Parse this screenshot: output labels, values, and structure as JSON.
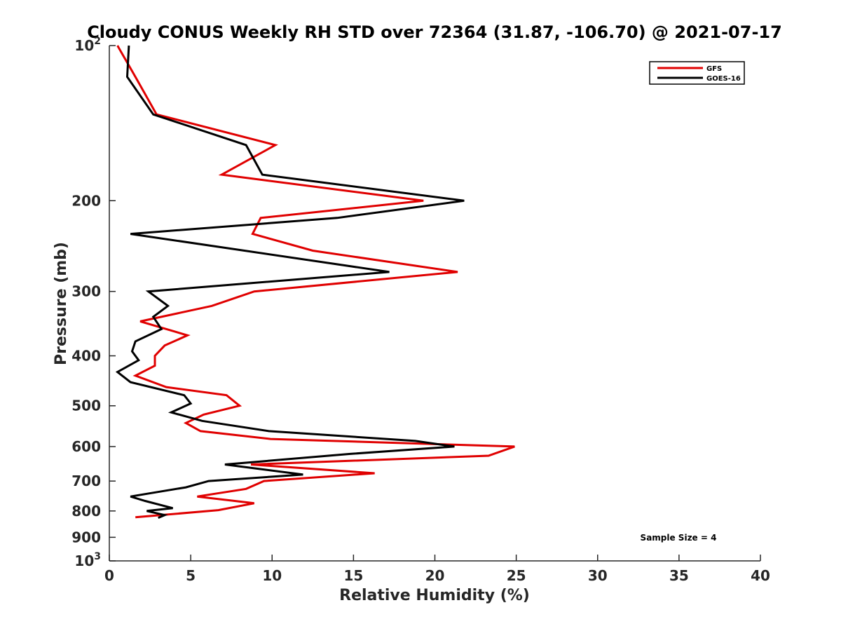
{
  "chart_data": {
    "type": "line",
    "title": "Cloudy CONUS Weekly RH STD over 72364 (31.87, -106.70) @ 2021-07-17",
    "xlabel": "Relative Humidity (%)",
    "ylabel": "Pressure (mb)",
    "xlim": [
      0,
      40
    ],
    "ylim": [
      100,
      1000
    ],
    "y_scale": "log",
    "y_reversed": true,
    "xticks": [
      "0",
      "5",
      "10",
      "15",
      "20",
      "25",
      "30",
      "35",
      "40"
    ],
    "yticks": [
      {
        "value": 100,
        "base": "10",
        "exp": "2"
      },
      {
        "value": 200,
        "label": "200"
      },
      {
        "value": 300,
        "label": "300"
      },
      {
        "value": 400,
        "label": "400"
      },
      {
        "value": 500,
        "label": "500"
      },
      {
        "value": 600,
        "label": "600"
      },
      {
        "value": 700,
        "label": "700"
      },
      {
        "value": 800,
        "label": "800"
      },
      {
        "value": 900,
        "label": "900"
      },
      {
        "value": 1000,
        "base": "10",
        "exp": "3"
      }
    ],
    "legend_position": "top-right",
    "annotation": "Sample Size = 4",
    "series": [
      {
        "name": "GFS",
        "color": "#e00000",
        "points": [
          [
            0.5,
            100
          ],
          [
            1.6,
            115
          ],
          [
            2.9,
            136
          ],
          [
            10.2,
            156
          ],
          [
            6.9,
            178
          ],
          [
            19.3,
            200
          ],
          [
            9.3,
            216
          ],
          [
            8.8,
            232
          ],
          [
            12.5,
            250
          ],
          [
            21.4,
            275
          ],
          [
            8.9,
            300
          ],
          [
            6.3,
            320
          ],
          [
            1.9,
            343
          ],
          [
            4.8,
            365
          ],
          [
            3.4,
            382
          ],
          [
            2.8,
            400
          ],
          [
            2.8,
            418
          ],
          [
            1.6,
            437
          ],
          [
            3.5,
            460
          ],
          [
            7.2,
            477
          ],
          [
            8.0,
            500
          ],
          [
            5.8,
            520
          ],
          [
            4.7,
            540
          ],
          [
            5.6,
            560
          ],
          [
            9.9,
            580
          ],
          [
            24.9,
            600
          ],
          [
            23.3,
            625
          ],
          [
            8.7,
            650
          ],
          [
            16.3,
            676
          ],
          [
            9.5,
            700
          ],
          [
            8.4,
            725
          ],
          [
            5.4,
            750
          ],
          [
            8.9,
            773
          ],
          [
            6.7,
            797
          ],
          [
            1.6,
            823
          ]
        ]
      },
      {
        "name": "GOES-16",
        "color": "#000000",
        "points": [
          [
            1.2,
            100
          ],
          [
            1.1,
            115
          ],
          [
            2.7,
            136
          ],
          [
            8.4,
            156
          ],
          [
            9.4,
            178
          ],
          [
            21.8,
            200
          ],
          [
            14.0,
            216
          ],
          [
            1.3,
            232
          ],
          [
            17.2,
            275
          ],
          [
            2.4,
            300
          ],
          [
            3.6,
            320
          ],
          [
            2.7,
            336
          ],
          [
            3.2,
            355
          ],
          [
            1.6,
            375
          ],
          [
            1.4,
            392
          ],
          [
            1.8,
            408
          ],
          [
            0.5,
            430
          ],
          [
            1.3,
            450
          ],
          [
            4.6,
            477
          ],
          [
            5.0,
            495
          ],
          [
            3.8,
            515
          ],
          [
            5.7,
            535
          ],
          [
            9.8,
            560
          ],
          [
            18.8,
            585
          ],
          [
            21.2,
            600
          ],
          [
            14.8,
            620
          ],
          [
            7.1,
            650
          ],
          [
            11.9,
            680
          ],
          [
            6.1,
            700
          ],
          [
            4.7,
            720
          ],
          [
            1.3,
            750
          ],
          [
            2.2,
            765
          ],
          [
            3.9,
            790
          ],
          [
            2.3,
            800
          ],
          [
            3.4,
            815
          ],
          [
            3.0,
            825
          ]
        ]
      }
    ]
  }
}
